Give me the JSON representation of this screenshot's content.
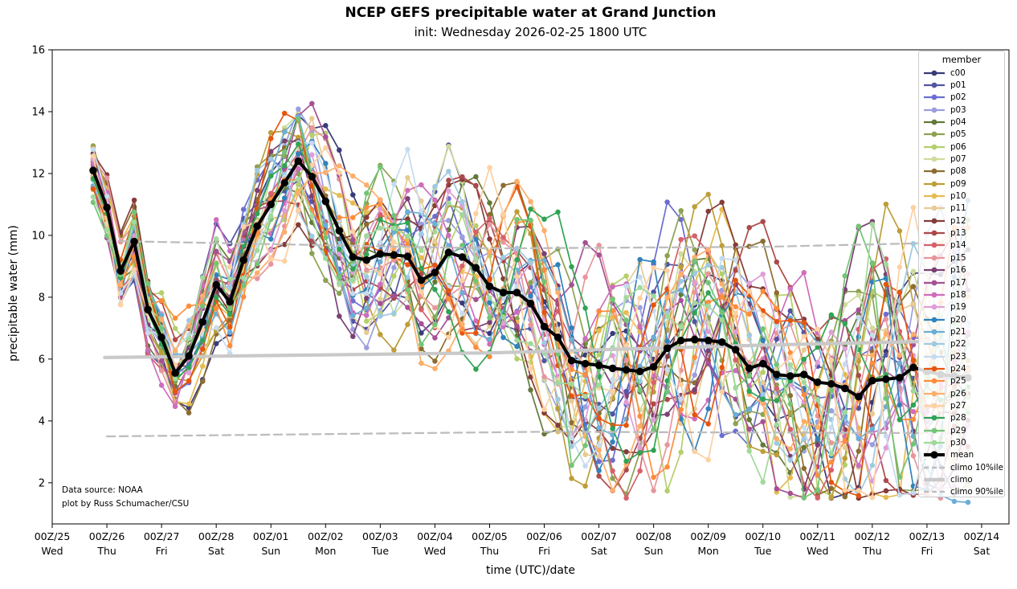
{
  "chart_data": {
    "type": "line",
    "title": "NCEP GEFS precipitable water at Grand Junction",
    "subtitle": "init: Wednesday 2026-02-25 1800 UTC",
    "xlabel": "time (UTC)/date",
    "ylabel": "precipitable water (mm)",
    "annotation_line1": "Data source: NOAA",
    "annotation_line2": "plot by Russ Schumacher/CSU",
    "legend_title": "member",
    "ylim": [
      0.67,
      16.0
    ],
    "yticks": [
      2,
      4,
      6,
      8,
      10,
      12,
      14,
      16
    ],
    "x_axis": {
      "days_span": 17.5,
      "first_data_day_offset": 0.75,
      "step_days": 0.25,
      "n_points": 65
    },
    "xticks": [
      {
        "utc": "00Z/25",
        "day": "Wed"
      },
      {
        "utc": "00Z/26",
        "day": "Thu"
      },
      {
        "utc": "00Z/27",
        "day": "Fri"
      },
      {
        "utc": "00Z/28",
        "day": "Sat"
      },
      {
        "utc": "00Z/01",
        "day": "Sun"
      },
      {
        "utc": "00Z/02",
        "day": "Mon"
      },
      {
        "utc": "00Z/03",
        "day": "Tue"
      },
      {
        "utc": "00Z/04",
        "day": "Wed"
      },
      {
        "utc": "00Z/05",
        "day": "Thu"
      },
      {
        "utc": "00Z/06",
        "day": "Fri"
      },
      {
        "utc": "00Z/07",
        "day": "Sat"
      },
      {
        "utc": "00Z/08",
        "day": "Sun"
      },
      {
        "utc": "00Z/09",
        "day": "Mon"
      },
      {
        "utc": "00Z/10",
        "day": "Tue"
      },
      {
        "utc": "00Z/11",
        "day": "Wed"
      },
      {
        "utc": "00Z/12",
        "day": "Thu"
      },
      {
        "utc": "00Z/13",
        "day": "Fri"
      },
      {
        "utc": "00Z/14",
        "day": "Sat"
      }
    ],
    "mean": {
      "name": "mean",
      "color": "#000000",
      "values": [
        12.1,
        10.9,
        8.85,
        9.8,
        7.6,
        6.7,
        5.55,
        6.1,
        7.2,
        8.4,
        7.85,
        9.2,
        10.3,
        11.0,
        11.7,
        12.4,
        11.9,
        11.1,
        10.15,
        9.3,
        9.2,
        9.4,
        9.37,
        9.32,
        8.55,
        8.8,
        9.45,
        9.3,
        8.95,
        8.35,
        8.15,
        8.15,
        7.8,
        7.05,
        6.7,
        5.95,
        5.85,
        5.8,
        5.7,
        5.65,
        5.6,
        5.75,
        6.35,
        6.6,
        6.63,
        6.6,
        6.55,
        6.3,
        5.7,
        5.85,
        5.5,
        5.45,
        5.5,
        5.25,
        5.2,
        5.05,
        4.78,
        5.3,
        5.35,
        5.4,
        5.73,
        5.6,
        5.5,
        5.45,
        5.4
      ]
    },
    "climo10": {
      "name": "climo 10%ile",
      "color": "#bdbdbd",
      "points": [
        [
          1.0,
          3.5
        ],
        [
          9.0,
          3.65
        ],
        [
          16.75,
          3.6
        ]
      ]
    },
    "climo": {
      "name": "climo",
      "color": "#c9c9c9",
      "points": [
        [
          0.96,
          6.05
        ],
        [
          8.0,
          6.2
        ],
        [
          13.0,
          6.45
        ],
        [
          16.75,
          6.6
        ]
      ]
    },
    "climo90": {
      "name": "climo 90%ile",
      "color": "#bdbdbd",
      "points": [
        [
          1.0,
          9.82
        ],
        [
          8.0,
          9.58
        ],
        [
          13.0,
          9.63
        ],
        [
          16.75,
          9.78
        ]
      ]
    },
    "ensemble_synth": {
      "spread_base": 0.55,
      "spread_growth": 2.6,
      "spread_power": 0.75,
      "amp": 1.9,
      "jitter": 0.2,
      "floor": 1.5,
      "ceil": 15.45
    },
    "members": [
      {
        "name": "c00",
        "color": "#393b79",
        "seed": 3
      },
      {
        "name": "p01",
        "color": "#5254a3",
        "seed": 17
      },
      {
        "name": "p02",
        "color": "#6b6ecf",
        "seed": 42
      },
      {
        "name": "p03",
        "color": "#9c9ede",
        "seed": 59
      },
      {
        "name": "p04",
        "color": "#637939",
        "seed": 71
      },
      {
        "name": "p05",
        "color": "#8ca252",
        "seed": 88
      },
      {
        "name": "p06",
        "color": "#b5cf6b",
        "seed": 101
      },
      {
        "name": "p07",
        "color": "#cedb9c",
        "seed": 123
      },
      {
        "name": "p08",
        "color": "#8c6d31",
        "seed": 140
      },
      {
        "name": "p09",
        "color": "#bd9e39",
        "seed": 163
      },
      {
        "name": "p10",
        "color": "#e7ba52",
        "seed": 181
      },
      {
        "name": "p11",
        "color": "#e7cb94",
        "seed": 199
      },
      {
        "name": "p12",
        "color": "#843c39",
        "seed": 214
      },
      {
        "name": "p13",
        "color": "#ad494a",
        "seed": 230
      },
      {
        "name": "p14",
        "color": "#d6616b",
        "seed": 257
      },
      {
        "name": "p15",
        "color": "#e7969c",
        "seed": 274
      },
      {
        "name": "p16",
        "color": "#7b4173",
        "seed": 291
      },
      {
        "name": "p17",
        "color": "#a55194",
        "seed": 310
      },
      {
        "name": "p18",
        "color": "#ce6dbd",
        "seed": 333
      },
      {
        "name": "p19",
        "color": "#de9ed6",
        "seed": 347
      },
      {
        "name": "p20",
        "color": "#3182bd",
        "seed": 365
      },
      {
        "name": "p21",
        "color": "#6baed6",
        "seed": 382,
        "tail": {
          "start_index": 60,
          "values": [
            3.5,
            2.5,
            1.6,
            1.4,
            1.37
          ]
        }
      },
      {
        "name": "p22",
        "color": "#9ecae1",
        "seed": 401
      },
      {
        "name": "p23",
        "color": "#c6dbef",
        "seed": 420
      },
      {
        "name": "p24",
        "color": "#e6550d",
        "seed": 444
      },
      {
        "name": "p25",
        "color": "#fd8d3c",
        "seed": 461
      },
      {
        "name": "p26",
        "color": "#fdae6b",
        "seed": 480
      },
      {
        "name": "p27",
        "color": "#fdd0a2",
        "seed": 505
      },
      {
        "name": "p28",
        "color": "#31a354",
        "seed": 521
      },
      {
        "name": "p29",
        "color": "#74c476",
        "seed": 548
      },
      {
        "name": "p30",
        "color": "#a1d99b",
        "seed": 566
      }
    ]
  }
}
